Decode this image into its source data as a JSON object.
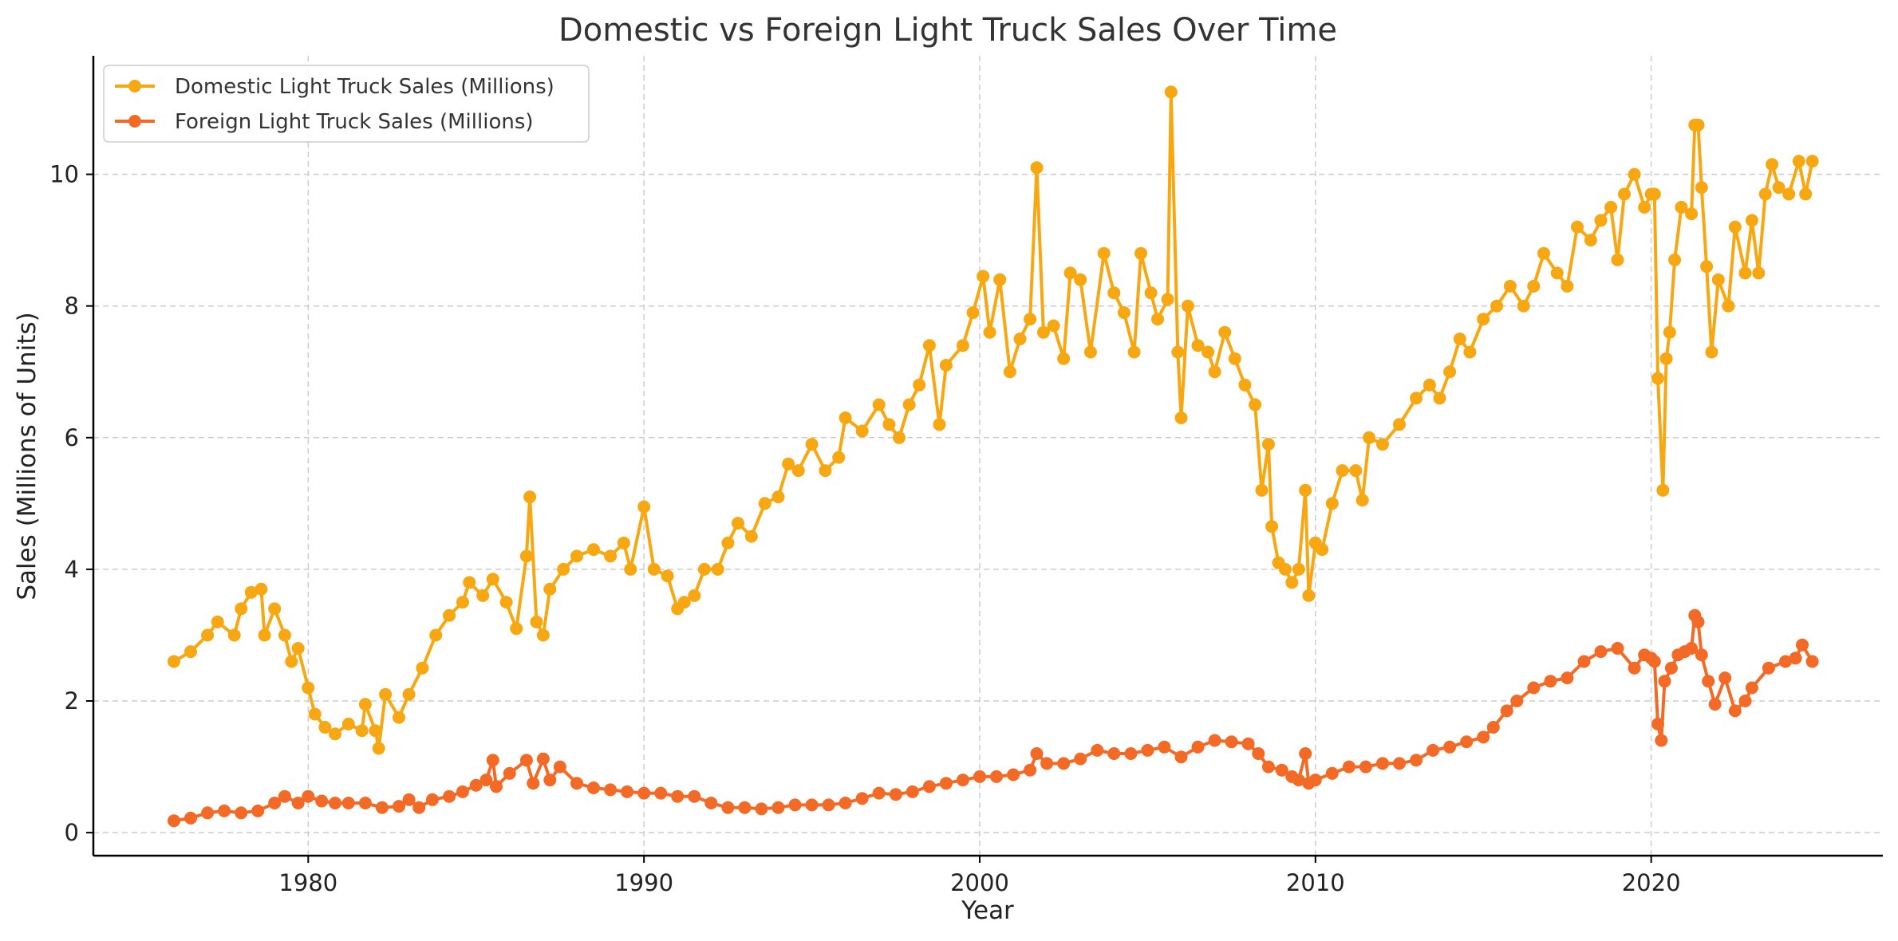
{
  "chart_data": {
    "type": "line",
    "title": "Domestic vs Foreign Light Truck Sales Over Time",
    "xlabel": "Year",
    "ylabel": "Sales (Millions of Units)",
    "xlim": [
      1973.6,
      2026.9
    ],
    "ylim": [
      -0.35,
      11.8
    ],
    "x_ticks": [
      1980,
      1990,
      2000,
      2010,
      2020
    ],
    "y_ticks": [
      0,
      2,
      4,
      6,
      8,
      10
    ],
    "grid": true,
    "legend_position": "top-left",
    "series": [
      {
        "name": "Domestic Light Truck Sales (Millions)",
        "color": "#F7A711",
        "points": [
          [
            1976.0,
            2.6
          ],
          [
            1976.5,
            2.75
          ],
          [
            1977.0,
            3.0
          ],
          [
            1977.3,
            3.2
          ],
          [
            1977.8,
            3.0
          ],
          [
            1978.0,
            3.4
          ],
          [
            1978.3,
            3.65
          ],
          [
            1978.6,
            3.7
          ],
          [
            1978.7,
            3.0
          ],
          [
            1979.0,
            3.4
          ],
          [
            1979.3,
            3.0
          ],
          [
            1979.5,
            2.6
          ],
          [
            1979.7,
            2.8
          ],
          [
            1980.0,
            2.2
          ],
          [
            1980.2,
            1.8
          ],
          [
            1980.5,
            1.6
          ],
          [
            1980.8,
            1.5
          ],
          [
            1981.2,
            1.65
          ],
          [
            1981.6,
            1.55
          ],
          [
            1981.7,
            1.95
          ],
          [
            1982.0,
            1.55
          ],
          [
            1982.1,
            1.28
          ],
          [
            1982.3,
            2.1
          ],
          [
            1982.7,
            1.75
          ],
          [
            1983.0,
            2.1
          ],
          [
            1983.4,
            2.5
          ],
          [
            1983.8,
            3.0
          ],
          [
            1984.2,
            3.3
          ],
          [
            1984.6,
            3.5
          ],
          [
            1984.8,
            3.8
          ],
          [
            1985.2,
            3.6
          ],
          [
            1985.5,
            3.85
          ],
          [
            1985.9,
            3.5
          ],
          [
            1986.2,
            3.1
          ],
          [
            1986.5,
            4.2
          ],
          [
            1986.6,
            5.1
          ],
          [
            1986.8,
            3.2
          ],
          [
            1987.0,
            3.0
          ],
          [
            1987.2,
            3.7
          ],
          [
            1987.6,
            4.0
          ],
          [
            1988.0,
            4.2
          ],
          [
            1988.5,
            4.3
          ],
          [
            1989.0,
            4.2
          ],
          [
            1989.4,
            4.4
          ],
          [
            1989.6,
            4.0
          ],
          [
            1990.0,
            4.95
          ],
          [
            1990.3,
            4.0
          ],
          [
            1990.7,
            3.9
          ],
          [
            1991.0,
            3.4
          ],
          [
            1991.2,
            3.5
          ],
          [
            1991.5,
            3.6
          ],
          [
            1991.8,
            4.0
          ],
          [
            1992.2,
            4.0
          ],
          [
            1992.5,
            4.4
          ],
          [
            1992.8,
            4.7
          ],
          [
            1993.2,
            4.5
          ],
          [
            1993.6,
            5.0
          ],
          [
            1994.0,
            5.1
          ],
          [
            1994.3,
            5.6
          ],
          [
            1994.6,
            5.5
          ],
          [
            1995.0,
            5.9
          ],
          [
            1995.4,
            5.5
          ],
          [
            1995.8,
            5.7
          ],
          [
            1996.0,
            6.3
          ],
          [
            1996.5,
            6.1
          ],
          [
            1997.0,
            6.5
          ],
          [
            1997.3,
            6.2
          ],
          [
            1997.6,
            6.0
          ],
          [
            1997.9,
            6.5
          ],
          [
            1998.2,
            6.8
          ],
          [
            1998.5,
            7.4
          ],
          [
            1998.8,
            6.2
          ],
          [
            1999.0,
            7.1
          ],
          [
            1999.5,
            7.4
          ],
          [
            1999.8,
            7.9
          ],
          [
            2000.1,
            8.45
          ],
          [
            2000.3,
            7.6
          ],
          [
            2000.6,
            8.4
          ],
          [
            2000.9,
            7.0
          ],
          [
            2001.2,
            7.5
          ],
          [
            2001.5,
            7.8
          ],
          [
            2001.7,
            10.1
          ],
          [
            2001.9,
            7.6
          ],
          [
            2002.2,
            7.7
          ],
          [
            2002.5,
            7.2
          ],
          [
            2002.7,
            8.5
          ],
          [
            2003.0,
            8.4
          ],
          [
            2003.3,
            7.3
          ],
          [
            2003.7,
            8.8
          ],
          [
            2004.0,
            8.2
          ],
          [
            2004.3,
            7.9
          ],
          [
            2004.6,
            7.3
          ],
          [
            2004.8,
            8.8
          ],
          [
            2005.1,
            8.2
          ],
          [
            2005.3,
            7.8
          ],
          [
            2005.6,
            8.1
          ],
          [
            2005.7,
            11.25
          ],
          [
            2005.9,
            7.3
          ],
          [
            2006.0,
            6.3
          ],
          [
            2006.2,
            8.0
          ],
          [
            2006.5,
            7.4
          ],
          [
            2006.8,
            7.3
          ],
          [
            2007.0,
            7.0
          ],
          [
            2007.3,
            7.6
          ],
          [
            2007.6,
            7.2
          ],
          [
            2007.9,
            6.8
          ],
          [
            2008.2,
            6.5
          ],
          [
            2008.4,
            5.2
          ],
          [
            2008.6,
            5.9
          ],
          [
            2008.7,
            4.65
          ],
          [
            2008.9,
            4.1
          ],
          [
            2009.1,
            4.0
          ],
          [
            2009.3,
            3.8
          ],
          [
            2009.5,
            4.0
          ],
          [
            2009.7,
            5.2
          ],
          [
            2009.8,
            3.6
          ],
          [
            2010.0,
            4.4
          ],
          [
            2010.2,
            4.3
          ],
          [
            2010.5,
            5.0
          ],
          [
            2010.8,
            5.5
          ],
          [
            2011.2,
            5.5
          ],
          [
            2011.4,
            5.05
          ],
          [
            2011.6,
            6.0
          ],
          [
            2012.0,
            5.9
          ],
          [
            2012.5,
            6.2
          ],
          [
            2013.0,
            6.6
          ],
          [
            2013.4,
            6.8
          ],
          [
            2013.7,
            6.6
          ],
          [
            2014.0,
            7.0
          ],
          [
            2014.3,
            7.5
          ],
          [
            2014.6,
            7.3
          ],
          [
            2015.0,
            7.8
          ],
          [
            2015.4,
            8.0
          ],
          [
            2015.8,
            8.3
          ],
          [
            2016.2,
            8.0
          ],
          [
            2016.5,
            8.3
          ],
          [
            2016.8,
            8.8
          ],
          [
            2017.2,
            8.5
          ],
          [
            2017.5,
            8.3
          ],
          [
            2017.8,
            9.2
          ],
          [
            2018.2,
            9.0
          ],
          [
            2018.5,
            9.3
          ],
          [
            2018.8,
            9.5
          ],
          [
            2019.0,
            8.7
          ],
          [
            2019.2,
            9.7
          ],
          [
            2019.5,
            10.0
          ],
          [
            2019.8,
            9.5
          ],
          [
            2020.0,
            9.7
          ],
          [
            2020.1,
            9.7
          ],
          [
            2020.2,
            6.9
          ],
          [
            2020.35,
            5.2
          ],
          [
            2020.45,
            7.2
          ],
          [
            2020.55,
            7.6
          ],
          [
            2020.7,
            8.7
          ],
          [
            2020.9,
            9.5
          ],
          [
            2021.2,
            9.4
          ],
          [
            2021.3,
            10.75
          ],
          [
            2021.4,
            10.75
          ],
          [
            2021.5,
            9.8
          ],
          [
            2021.65,
            8.6
          ],
          [
            2021.8,
            7.3
          ],
          [
            2022.0,
            8.4
          ],
          [
            2022.3,
            8.0
          ],
          [
            2022.5,
            9.2
          ],
          [
            2022.8,
            8.5
          ],
          [
            2023.0,
            9.3
          ],
          [
            2023.2,
            8.5
          ],
          [
            2023.4,
            9.7
          ],
          [
            2023.6,
            10.15
          ],
          [
            2023.8,
            9.8
          ],
          [
            2024.1,
            9.7
          ],
          [
            2024.4,
            10.2
          ],
          [
            2024.6,
            9.7
          ],
          [
            2024.8,
            10.2
          ]
        ]
      },
      {
        "name": "Foreign Light Truck Sales (Millions)",
        "color": "#F26A25",
        "points": [
          [
            1976.0,
            0.18
          ],
          [
            1976.5,
            0.22
          ],
          [
            1977.0,
            0.3
          ],
          [
            1977.5,
            0.33
          ],
          [
            1978.0,
            0.3
          ],
          [
            1978.5,
            0.33
          ],
          [
            1979.0,
            0.45
          ],
          [
            1979.3,
            0.55
          ],
          [
            1979.7,
            0.45
          ],
          [
            1980.0,
            0.55
          ],
          [
            1980.4,
            0.48
          ],
          [
            1980.8,
            0.45
          ],
          [
            1981.2,
            0.45
          ],
          [
            1981.7,
            0.45
          ],
          [
            1982.2,
            0.38
          ],
          [
            1982.7,
            0.4
          ],
          [
            1983.0,
            0.5
          ],
          [
            1983.3,
            0.38
          ],
          [
            1983.7,
            0.5
          ],
          [
            1984.2,
            0.55
          ],
          [
            1984.6,
            0.62
          ],
          [
            1985.0,
            0.72
          ],
          [
            1985.3,
            0.8
          ],
          [
            1985.5,
            1.1
          ],
          [
            1985.6,
            0.7
          ],
          [
            1986.0,
            0.9
          ],
          [
            1986.5,
            1.1
          ],
          [
            1986.7,
            0.75
          ],
          [
            1987.0,
            1.12
          ],
          [
            1987.2,
            0.8
          ],
          [
            1987.5,
            1.0
          ],
          [
            1988.0,
            0.75
          ],
          [
            1988.5,
            0.68
          ],
          [
            1989.0,
            0.65
          ],
          [
            1989.5,
            0.62
          ],
          [
            1990.0,
            0.6
          ],
          [
            1990.5,
            0.6
          ],
          [
            1991.0,
            0.55
          ],
          [
            1991.5,
            0.55
          ],
          [
            1992.0,
            0.45
          ],
          [
            1992.5,
            0.38
          ],
          [
            1993.0,
            0.38
          ],
          [
            1993.5,
            0.36
          ],
          [
            1994.0,
            0.38
          ],
          [
            1994.5,
            0.42
          ],
          [
            1995.0,
            0.42
          ],
          [
            1995.5,
            0.42
          ],
          [
            1996.0,
            0.45
          ],
          [
            1996.5,
            0.52
          ],
          [
            1997.0,
            0.6
          ],
          [
            1997.5,
            0.58
          ],
          [
            1998.0,
            0.62
          ],
          [
            1998.5,
            0.7
          ],
          [
            1999.0,
            0.75
          ],
          [
            1999.5,
            0.8
          ],
          [
            2000.0,
            0.85
          ],
          [
            2000.5,
            0.85
          ],
          [
            2001.0,
            0.88
          ],
          [
            2001.5,
            0.95
          ],
          [
            2001.7,
            1.2
          ],
          [
            2002.0,
            1.05
          ],
          [
            2002.5,
            1.05
          ],
          [
            2003.0,
            1.12
          ],
          [
            2003.5,
            1.25
          ],
          [
            2004.0,
            1.2
          ],
          [
            2004.5,
            1.2
          ],
          [
            2005.0,
            1.25
          ],
          [
            2005.5,
            1.3
          ],
          [
            2006.0,
            1.15
          ],
          [
            2006.5,
            1.3
          ],
          [
            2007.0,
            1.4
          ],
          [
            2007.5,
            1.38
          ],
          [
            2008.0,
            1.35
          ],
          [
            2008.3,
            1.2
          ],
          [
            2008.6,
            1.0
          ],
          [
            2009.0,
            0.95
          ],
          [
            2009.3,
            0.85
          ],
          [
            2009.5,
            0.8
          ],
          [
            2009.7,
            1.2
          ],
          [
            2009.8,
            0.75
          ],
          [
            2010.0,
            0.8
          ],
          [
            2010.5,
            0.9
          ],
          [
            2011.0,
            1.0
          ],
          [
            2011.5,
            1.0
          ],
          [
            2012.0,
            1.05
          ],
          [
            2012.5,
            1.05
          ],
          [
            2013.0,
            1.1
          ],
          [
            2013.5,
            1.25
          ],
          [
            2014.0,
            1.3
          ],
          [
            2014.5,
            1.38
          ],
          [
            2015.0,
            1.45
          ],
          [
            2015.3,
            1.6
          ],
          [
            2015.7,
            1.85
          ],
          [
            2016.0,
            2.0
          ],
          [
            2016.5,
            2.2
          ],
          [
            2017.0,
            2.3
          ],
          [
            2017.5,
            2.35
          ],
          [
            2018.0,
            2.6
          ],
          [
            2018.5,
            2.75
          ],
          [
            2019.0,
            2.8
          ],
          [
            2019.5,
            2.5
          ],
          [
            2019.8,
            2.7
          ],
          [
            2020.0,
            2.65
          ],
          [
            2020.1,
            2.6
          ],
          [
            2020.2,
            1.65
          ],
          [
            2020.3,
            1.4
          ],
          [
            2020.4,
            2.3
          ],
          [
            2020.6,
            2.5
          ],
          [
            2020.8,
            2.7
          ],
          [
            2021.0,
            2.75
          ],
          [
            2021.2,
            2.8
          ],
          [
            2021.3,
            3.3
          ],
          [
            2021.4,
            3.2
          ],
          [
            2021.5,
            2.7
          ],
          [
            2021.7,
            2.3
          ],
          [
            2021.9,
            1.95
          ],
          [
            2022.2,
            2.35
          ],
          [
            2022.5,
            1.85
          ],
          [
            2022.8,
            2.0
          ],
          [
            2023.0,
            2.2
          ],
          [
            2023.5,
            2.5
          ],
          [
            2024.0,
            2.6
          ],
          [
            2024.3,
            2.65
          ],
          [
            2024.5,
            2.85
          ],
          [
            2024.8,
            2.6
          ]
        ]
      }
    ]
  }
}
